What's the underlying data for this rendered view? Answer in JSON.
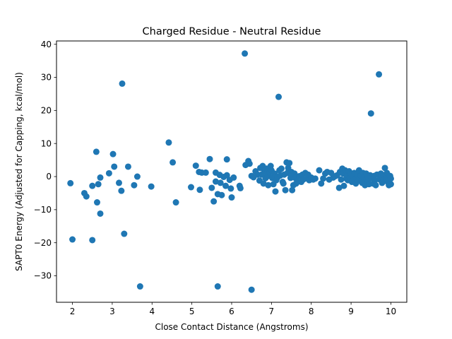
{
  "chart_data": {
    "type": "scatter",
    "title": "Charged Residue - Neutral Residue",
    "xlabel": "Close Contact Distance (Angstroms)",
    "ylabel": "SAPT0 Energy (Adjusted for Capping, kcal/mol)",
    "xlim": [
      1.6,
      10.4
    ],
    "ylim": [
      -38,
      41
    ],
    "xticks": [
      2,
      3,
      4,
      5,
      6,
      7,
      8,
      9,
      10
    ],
    "yticks": [
      -30,
      -20,
      -10,
      0,
      10,
      20,
      30,
      40
    ],
    "grid": false,
    "color": "#1f77b4",
    "series": [
      {
        "points": [
          [
            1.95,
            -2
          ],
          [
            2.0,
            -19
          ],
          [
            2.3,
            -5
          ],
          [
            2.35,
            -6
          ],
          [
            2.5,
            -2.8
          ],
          [
            2.5,
            -19.2
          ],
          [
            2.6,
            7.5
          ],
          [
            2.62,
            -7.8
          ],
          [
            2.65,
            -2.3
          ],
          [
            2.7,
            -11.2
          ],
          [
            2.7,
            -0.3
          ],
          [
            2.92,
            1
          ],
          [
            3.02,
            6.8
          ],
          [
            3.05,
            3
          ],
          [
            3.17,
            -1.9
          ],
          [
            3.23,
            -4.3
          ],
          [
            3.25,
            28.1
          ],
          [
            3.3,
            -17.3
          ],
          [
            3.4,
            3
          ],
          [
            3.55,
            -2.6
          ],
          [
            3.63,
            0
          ],
          [
            3.7,
            -33.2
          ],
          [
            3.98,
            -3
          ],
          [
            4.42,
            10.3
          ],
          [
            4.52,
            4.3
          ],
          [
            4.6,
            -7.8
          ],
          [
            4.98,
            -3.2
          ],
          [
            5.1,
            3.3
          ],
          [
            5.18,
            1.4
          ],
          [
            5.2,
            -4
          ],
          [
            5.25,
            1.2
          ],
          [
            5.35,
            1.2
          ],
          [
            5.45,
            5.3
          ],
          [
            5.5,
            -3.4
          ],
          [
            5.55,
            -7.5
          ],
          [
            5.6,
            1.2
          ],
          [
            5.6,
            -1.5
          ],
          [
            5.65,
            -33.2
          ],
          [
            5.65,
            -5.3
          ],
          [
            5.7,
            0.5
          ],
          [
            5.72,
            -1.9
          ],
          [
            5.75,
            -5.6
          ],
          [
            5.8,
            -0.1
          ],
          [
            5.85,
            -2.8
          ],
          [
            5.88,
            5.2
          ],
          [
            5.88,
            0.4
          ],
          [
            5.95,
            -1
          ],
          [
            5.98,
            -3.6
          ],
          [
            6.0,
            -6.3
          ],
          [
            6.05,
            -0.3
          ],
          [
            6.2,
            -2.8
          ],
          [
            6.22,
            -3.5
          ],
          [
            6.33,
            37.2
          ],
          [
            6.35,
            3.5
          ],
          [
            6.42,
            4.7
          ],
          [
            6.45,
            3.9
          ],
          [
            6.5,
            -34.2
          ],
          [
            6.5,
            0.2
          ],
          [
            6.55,
            -0.2
          ],
          [
            6.6,
            1.6
          ],
          [
            6.65,
            0.6
          ],
          [
            6.7,
            -1.2
          ],
          [
            6.72,
            2.6
          ],
          [
            6.75,
            0.6
          ],
          [
            6.78,
            3.2
          ],
          [
            6.8,
            -2.1
          ],
          [
            6.82,
            1.4
          ],
          [
            6.85,
            -0.5
          ],
          [
            6.88,
            2.4
          ],
          [
            6.9,
            0.1
          ],
          [
            6.92,
            -2.6
          ],
          [
            6.95,
            1.2
          ],
          [
            6.98,
            3.2
          ],
          [
            7.0,
            1.9
          ],
          [
            7.02,
            -0.4
          ],
          [
            7.05,
            -2.3
          ],
          [
            7.08,
            0.9
          ],
          [
            7.1,
            -4.5
          ],
          [
            7.12,
            -1.1
          ],
          [
            7.15,
            -0.3
          ],
          [
            7.18,
            24.1
          ],
          [
            7.2,
            1.9
          ],
          [
            7.22,
            0.3
          ],
          [
            7.25,
            2.4
          ],
          [
            7.28,
            -1.6
          ],
          [
            7.3,
            -2.1
          ],
          [
            7.32,
            0.6
          ],
          [
            7.35,
            -4.1
          ],
          [
            7.38,
            4.3
          ],
          [
            7.4,
            1.1
          ],
          [
            7.42,
            2.6
          ],
          [
            7.45,
            4.1
          ],
          [
            7.48,
            -0.4
          ],
          [
            7.5,
            1.4
          ],
          [
            7.52,
            -4.1
          ],
          [
            7.55,
            -2.6
          ],
          [
            7.58,
            0.9
          ],
          [
            7.6,
            -0.4
          ],
          [
            7.62,
            -2.1
          ],
          [
            7.65,
            -1.6
          ],
          [
            7.7,
            0.1
          ],
          [
            7.75,
            -1.6
          ],
          [
            7.78,
            0.6
          ],
          [
            7.8,
            -0.9
          ],
          [
            7.85,
            1.1
          ],
          [
            7.9,
            -0.6
          ],
          [
            7.92,
            0.6
          ],
          [
            7.95,
            -1.1
          ],
          [
            8.0,
            -0.3
          ],
          [
            8.05,
            -0.9
          ],
          [
            8.1,
            -0.6
          ],
          [
            8.2,
            1.9
          ],
          [
            8.25,
            -2.1
          ],
          [
            8.3,
            -0.6
          ],
          [
            8.35,
            0.9
          ],
          [
            8.4,
            1.4
          ],
          [
            8.45,
            -0.9
          ],
          [
            8.5,
            1.1
          ],
          [
            8.55,
            -0.3
          ],
          [
            8.6,
            0.1
          ],
          [
            8.65,
            0.4
          ],
          [
            8.7,
            -3.4
          ],
          [
            8.72,
            1.4
          ],
          [
            8.75,
            -0.9
          ],
          [
            8.78,
            2.4
          ],
          [
            8.8,
            0.9
          ],
          [
            8.82,
            -2.8
          ],
          [
            8.85,
            1.9
          ],
          [
            8.88,
            -0.6
          ],
          [
            8.9,
            0.4
          ],
          [
            8.92,
            -1.1
          ],
          [
            8.95,
            1.6
          ],
          [
            8.98,
            -0.3
          ],
          [
            9.0,
            0.9
          ],
          [
            9.02,
            -1.6
          ],
          [
            9.05,
            0.1
          ],
          [
            9.08,
            1.1
          ],
          [
            9.1,
            -0.9
          ],
          [
            9.12,
            -2.1
          ],
          [
            9.15,
            0.6
          ],
          [
            9.18,
            -1.3
          ],
          [
            9.2,
            1.9
          ],
          [
            9.22,
            -0.6
          ],
          [
            9.25,
            0.2
          ],
          [
            9.28,
            -1.9
          ],
          [
            9.3,
            1.1
          ],
          [
            9.32,
            -0.4
          ],
          [
            9.35,
            -2.6
          ],
          [
            9.38,
            0.9
          ],
          [
            9.4,
            -0.9
          ],
          [
            9.42,
            -1.6
          ],
          [
            9.45,
            -2.3
          ],
          [
            9.48,
            0.4
          ],
          [
            9.5,
            19.1
          ],
          [
            9.52,
            -0.4
          ],
          [
            9.55,
            -2.1
          ],
          [
            9.58,
            0.2
          ],
          [
            9.6,
            -1.1
          ],
          [
            9.62,
            -2.6
          ],
          [
            9.65,
            0.6
          ],
          [
            9.7,
            30.9
          ],
          [
            9.72,
            -0.9
          ],
          [
            9.75,
            0.9
          ],
          [
            9.78,
            -1.9
          ],
          [
            9.8,
            -0.4
          ],
          [
            9.82,
            0.4
          ],
          [
            9.85,
            2.6
          ],
          [
            9.88,
            -0.6
          ],
          [
            9.9,
            1.1
          ],
          [
            9.92,
            -1.6
          ],
          [
            9.95,
            -2.6
          ],
          [
            9.98,
            0.2
          ],
          [
            10.0,
            -2.3
          ],
          [
            10.0,
            -0.6
          ]
        ]
      }
    ]
  }
}
